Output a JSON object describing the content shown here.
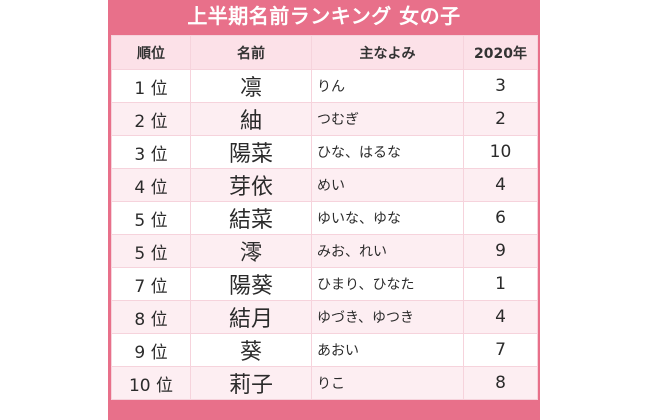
{
  "title": "上半期名前ランキング 女の子",
  "colors": {
    "frame": "#E8708A",
    "header_bg": "#FCE1E8",
    "alt_row_bg": "#FDEEF2",
    "row_bg": "#FFFFFF"
  },
  "columns": [
    "順位",
    "名前",
    "主なよみ",
    "2020年"
  ],
  "rows": [
    {
      "rank": "1 位",
      "name": "凛",
      "reading": "りん",
      "prev": "3"
    },
    {
      "rank": "2 位",
      "name": "紬",
      "reading": "つむぎ",
      "prev": "2"
    },
    {
      "rank": "3 位",
      "name": "陽菜",
      "reading": "ひな、はるな",
      "prev": "10"
    },
    {
      "rank": "4 位",
      "name": "芽依",
      "reading": "めい",
      "prev": "4"
    },
    {
      "rank": "5 位",
      "name": "結菜",
      "reading": "ゆいな、ゆな",
      "prev": "6"
    },
    {
      "rank": "5 位",
      "name": "澪",
      "reading": "みお、れい",
      "prev": "9"
    },
    {
      "rank": "7 位",
      "name": "陽葵",
      "reading": "ひまり、ひなた",
      "prev": "1"
    },
    {
      "rank": "8 位",
      "name": "結月",
      "reading": "ゆづき、ゆつき",
      "prev": "4"
    },
    {
      "rank": "9 位",
      "name": "葵",
      "reading": "あおい",
      "prev": "7"
    },
    {
      "rank": "10 位",
      "name": "莉子",
      "reading": "りこ",
      "prev": "8"
    }
  ]
}
